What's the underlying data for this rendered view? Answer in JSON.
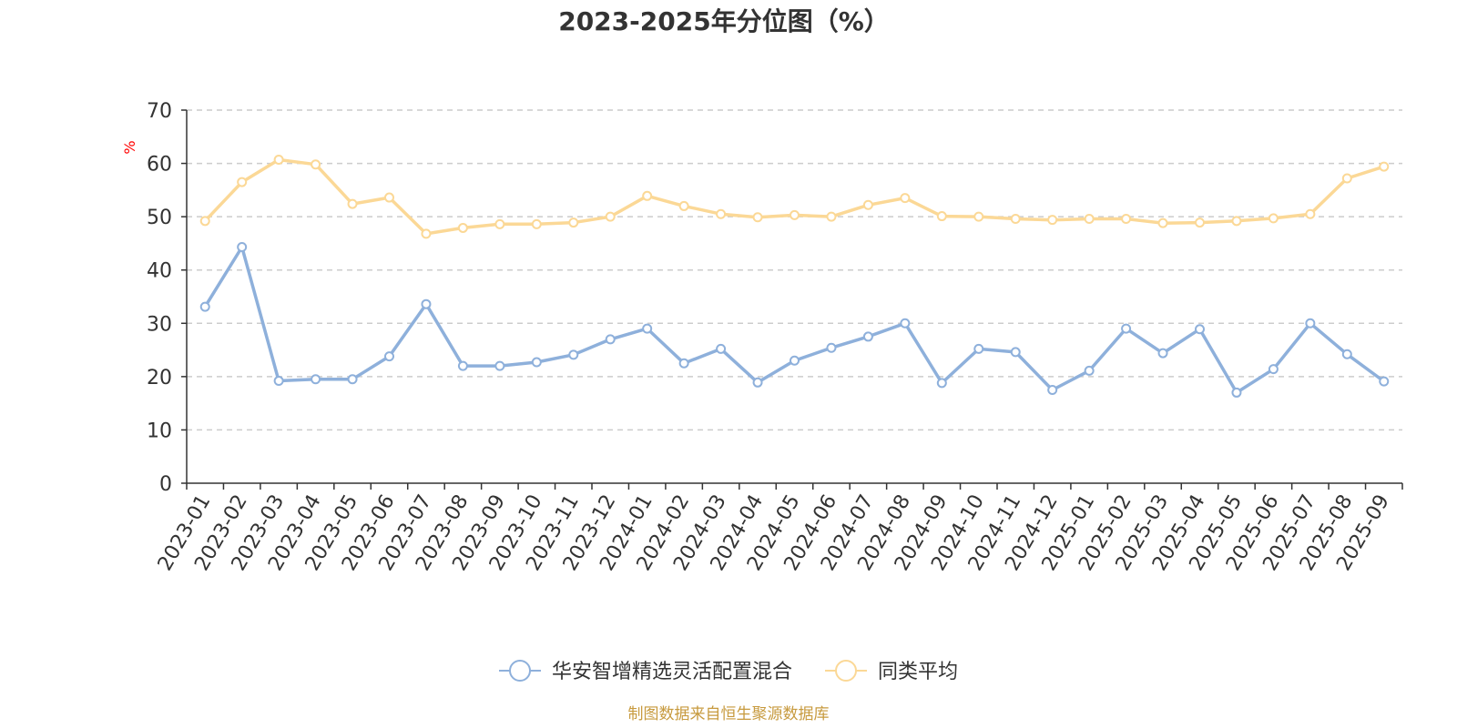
{
  "chart_data": {
    "type": "line",
    "title": "2023-2025年分位图（%）",
    "xlabel": "",
    "ylabel": "%",
    "ylim": [
      0,
      70
    ],
    "yticks": [
      0,
      10,
      20,
      30,
      40,
      50,
      60,
      70
    ],
    "grid": true,
    "legend_position": "bottom",
    "x": [
      "2023-01",
      "2023-02",
      "2023-03",
      "2023-04",
      "2023-05",
      "2023-06",
      "2023-07",
      "2023-08",
      "2023-09",
      "2023-10",
      "2023-11",
      "2023-12",
      "2024-01",
      "2024-02",
      "2024-03",
      "2024-04",
      "2024-05",
      "2024-06",
      "2024-07",
      "2024-08",
      "2024-09",
      "2024-10",
      "2024-11",
      "2024-12",
      "2025-01",
      "2025-02",
      "2025-03",
      "2025-04",
      "2025-05",
      "2025-06",
      "2025-07",
      "2025-08",
      "2025-09"
    ],
    "series": [
      {
        "name": "华安智增精选灵活配置混合",
        "color": "#8eb0db",
        "values": [
          33.1,
          44.3,
          19.2,
          19.5,
          19.5,
          23.8,
          33.6,
          22.0,
          22.0,
          22.7,
          24.1,
          27.0,
          29.0,
          22.5,
          25.2,
          18.9,
          23.0,
          25.4,
          27.5,
          30.0,
          18.8,
          25.2,
          24.6,
          17.5,
          21.1,
          29.0,
          24.4,
          28.9,
          17.0,
          21.4,
          30.0,
          24.2,
          19.1
        ]
      },
      {
        "name": "同类平均",
        "color": "#fbd896",
        "values": [
          49.2,
          56.5,
          60.7,
          59.8,
          52.4,
          53.6,
          46.8,
          47.9,
          48.6,
          48.6,
          48.9,
          50.0,
          53.9,
          52.0,
          50.5,
          49.9,
          50.3,
          50.0,
          52.2,
          53.5,
          50.1,
          50.0,
          49.6,
          49.4,
          49.6,
          49.6,
          48.8,
          48.9,
          49.2,
          49.7,
          50.5,
          57.2,
          59.4
        ]
      }
    ]
  },
  "colors": {
    "ylabel": "#ff0000",
    "source": "#c79a3e",
    "grid": "#cccccc",
    "axis": "#333333"
  },
  "source_note": "制图数据来自恒生聚源数据库"
}
